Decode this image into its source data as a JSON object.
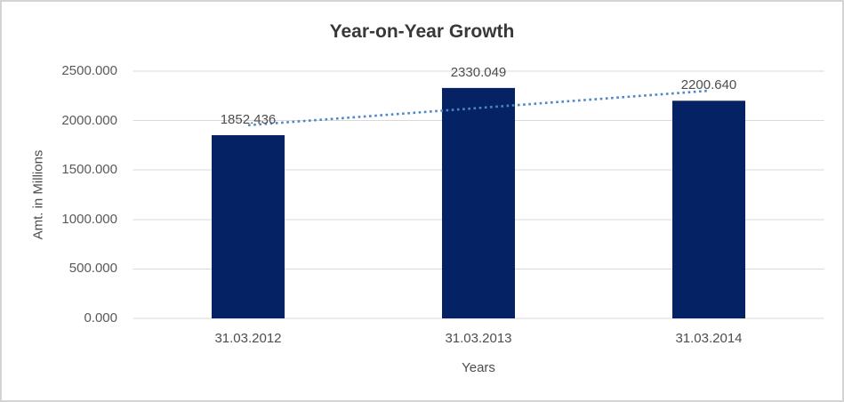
{
  "chart_data": {
    "type": "bar",
    "title": "Year-on-Year Growth",
    "xlabel": "Years",
    "ylabel": "Amt. in Millions",
    "categories": [
      "31.03.2012",
      "31.03.2013",
      "31.03.2014"
    ],
    "values": [
      1852.436,
      2330.049,
      2200.64
    ],
    "data_labels": [
      "1852.436",
      "2330.049",
      "2200.640"
    ],
    "ytick_labels": [
      "0.000",
      "500.000",
      "1000.000",
      "1500.000",
      "2000.000",
      "2500.000"
    ],
    "ylim": [
      0,
      2500
    ],
    "grid": true,
    "legend_position": "none",
    "trendline": {
      "type": "linear",
      "style": "dotted"
    },
    "colors": {
      "bar": "#052264",
      "trendline": "#4e86c6",
      "gridline": "#d9d9d9",
      "tick_text": "#595959",
      "label_text": "#4d4d4d",
      "title_text": "#383838"
    }
  }
}
